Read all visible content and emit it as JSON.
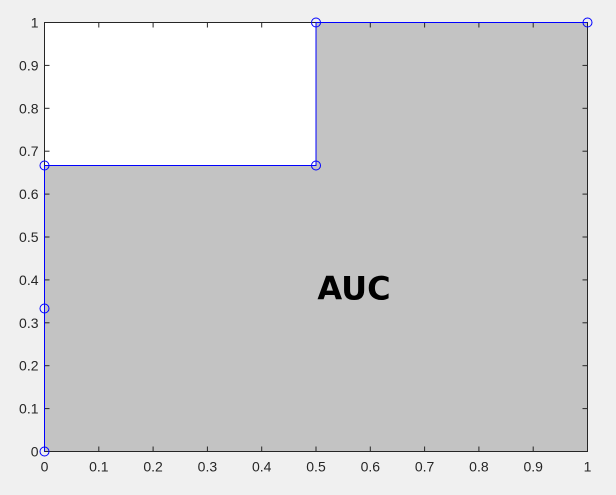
{
  "chart_data": {
    "type": "area",
    "title": "",
    "xlabel": "",
    "ylabel": "",
    "xlim": [
      0,
      1
    ],
    "ylim": [
      0,
      1
    ],
    "grid": false,
    "x_ticks": [
      "0",
      "0.1",
      "0.2",
      "0.3",
      "0.4",
      "0.5",
      "0.6",
      "0.7",
      "0.8",
      "0.9",
      "1"
    ],
    "y_ticks": [
      "0",
      "0.1",
      "0.2",
      "0.3",
      "0.4",
      "0.5",
      "0.6",
      "0.7",
      "0.8",
      "0.9",
      "1"
    ],
    "series": [
      {
        "x": [
          0,
          0,
          0,
          0.5,
          0.5,
          1
        ],
        "y": [
          0,
          0.3333,
          0.6667,
          0.6667,
          1,
          1
        ],
        "line_color": "#0000ff",
        "marker": "circle",
        "fill_color": "#c3c3c3"
      }
    ],
    "annotations": [
      {
        "text": "AUC",
        "x": 0.57,
        "y": 0.38
      }
    ]
  }
}
